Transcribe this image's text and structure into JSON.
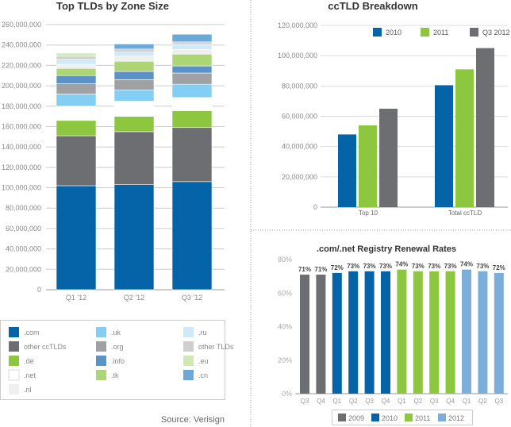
{
  "source": "Source: Verisign",
  "colors": {
    ".com": "#0563a8",
    "other ccTLDs": "#6d6e71",
    ".de": "#8dc63f",
    ".net": "#ffffff",
    ".uk": "#85cef3",
    ".org": "#a0a1a4",
    ".info": "#5b93c9",
    ".tk": "#acd576",
    ".nl": "#efefef",
    ".ru": "#cfe9f8",
    "other TLDs": "#cfcfd0",
    ".eu": "#d2e8b3",
    ".cn": "#6aa9d8",
    "2009": "#6d6e71",
    "2010": "#0563a8",
    "2011": "#8dc63f",
    "2012": "#7bafd9",
    "Q3 2012": "#6d6e71"
  },
  "chart_data": [
    {
      "type": "bar",
      "stacked": true,
      "title": "Top TLDs by Zone Size",
      "categories": [
        "Q1 '12",
        "Q2 '12",
        "Q3 '12"
      ],
      "ylim": [
        0,
        260000000
      ],
      "yticks": [
        "0",
        "20,000,000",
        "40,000,000",
        "60,000,000",
        "80,000,000",
        "100,000,000",
        "120,000,000",
        "140,000,000",
        "160,000,000",
        "180,000,000",
        "200,000,000",
        "220,000,000",
        "240,000,000",
        "260,000,000"
      ],
      "legend": [
        ".com",
        ".uk",
        ".ru",
        "other ccTLDs",
        ".org",
        "other TLDs",
        ".de",
        ".info",
        ".eu",
        ".net",
        ".tk",
        ".cn",
        ".nl"
      ],
      "series": [
        {
          "name": ".com",
          "values": [
            102,
            103,
            106
          ]
        },
        {
          "name": "other ccTLDs",
          "values": [
            49,
            52,
            53
          ]
        },
        {
          "name": ".de",
          "values": [
            15,
            15,
            16.5
          ]
        },
        {
          "name": ".net",
          "values": [
            14,
            15,
            13
          ]
        },
        {
          "name": ".uk",
          "values": [
            12,
            11,
            13
          ]
        },
        {
          "name": ".org",
          "values": [
            10,
            10,
            11
          ]
        },
        {
          "name": ".info",
          "values": [
            8,
            8,
            7
          ]
        },
        {
          "name": ".tk",
          "values": [
            7,
            10,
            11.5
          ]
        },
        {
          "name": ".nl",
          "values": [
            4,
            5,
            4.5
          ]
        },
        {
          "name": ".ru",
          "values": [
            5,
            4,
            5
          ]
        },
        {
          "name": "other TLDs",
          "values": [
            3,
            3,
            2.5
          ]
        },
        {
          "name": ".eu",
          "values": [
            3,
            0,
            0
          ]
        },
        {
          "name": ".cn",
          "values": [
            0,
            5,
            7.5
          ]
        }
      ],
      "units": "millions"
    },
    {
      "type": "bar",
      "title": "ccTLD Breakdown",
      "categories": [
        "Top 10",
        "Total ccTLD"
      ],
      "ylim": [
        0,
        120000000
      ],
      "yticks": [
        "0",
        "20,000,000",
        "40,000,000",
        "60,000,000",
        "80,000,000",
        "100,000,000",
        "120,000,000"
      ],
      "series": [
        {
          "name": "2010",
          "values": [
            48000000,
            80500000
          ]
        },
        {
          "name": "2011",
          "values": [
            54000000,
            91000000
          ]
        },
        {
          "name": "Q3 2012",
          "values": [
            65000000,
            105000000
          ]
        }
      ],
      "legend_position": "top"
    },
    {
      "type": "bar",
      "title": ".com/.net Registry Renewal Rates",
      "categories": [
        "Q3",
        "Q4",
        "Q1",
        "Q2",
        "Q3",
        "Q4",
        "Q1",
        "Q2",
        "Q3",
        "Q4",
        "Q1",
        "Q2",
        "Q3"
      ],
      "years": [
        "2009",
        "2009",
        "2010",
        "2010",
        "2010",
        "2010",
        "2011",
        "2011",
        "2011",
        "2011",
        "2012",
        "2012",
        "2012"
      ],
      "values": [
        71,
        71,
        72,
        73,
        73,
        73,
        74,
        73,
        73,
        73,
        74,
        73,
        72
      ],
      "labels": [
        "71%",
        "71%",
        "72%",
        "73%",
        "73%",
        "73%",
        "74%",
        "73%",
        "73%",
        "73%",
        "74%",
        "73%",
        "72%"
      ],
      "ylim": [
        0,
        80
      ],
      "yticks": [
        "0%",
        "20%",
        "40%",
        "60%",
        "80%"
      ],
      "legend": [
        "2009",
        "2010",
        "2011",
        "2012"
      ],
      "legend_position": "bottom"
    }
  ]
}
